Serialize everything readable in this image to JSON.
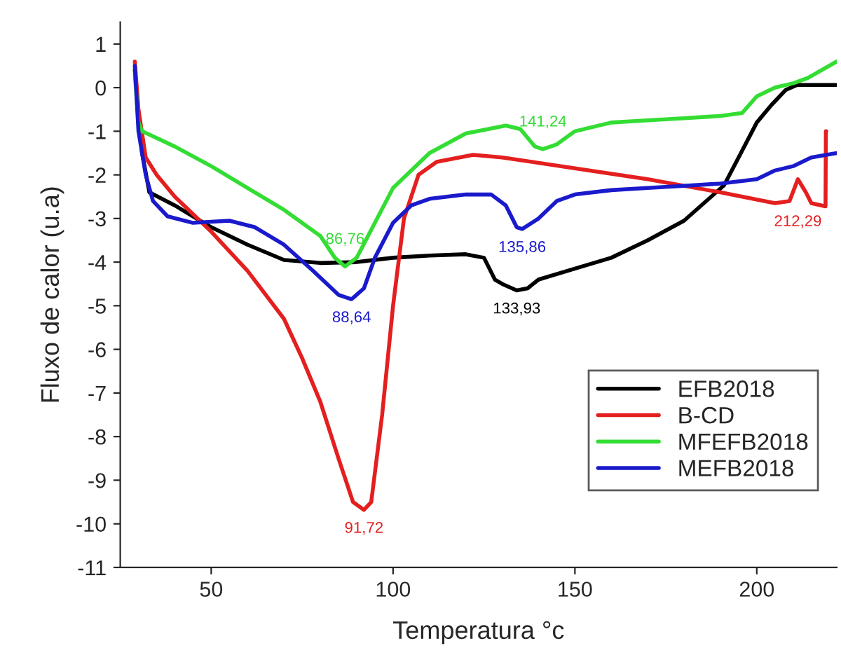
{
  "chart_data": {
    "type": "line",
    "xlabel": "Temperatura °c",
    "ylabel": "Fluxo de calor (u.a)",
    "xlim": [
      25,
      222
    ],
    "xticks": [
      50,
      100,
      150,
      200
    ],
    "ylim": [
      -11,
      1.5
    ],
    "yticks": [
      -11,
      -10,
      -9,
      -8,
      -7,
      -6,
      -5,
      -4,
      -3,
      -2,
      -1,
      0,
      1
    ],
    "grid": false,
    "legend": "bottom right",
    "series": [
      {
        "name": "EFB2018",
        "color": "#000000",
        "x": [
          29,
          31,
          33,
          40,
          50,
          60,
          70,
          80,
          90,
          100,
          110,
          120,
          125,
          128,
          130,
          134,
          137,
          140,
          150,
          160,
          170,
          180,
          191,
          195,
          200,
          204,
          208,
          211,
          215,
          222
        ],
        "values": [
          0.4,
          -1.5,
          -2.4,
          -2.7,
          -3.2,
          -3.6,
          -3.95,
          -4.02,
          -4.0,
          -3.9,
          -3.85,
          -3.82,
          -3.9,
          -4.4,
          -4.5,
          -4.65,
          -4.6,
          -4.4,
          -4.15,
          -3.9,
          -3.5,
          -3.05,
          -2.24,
          -1.6,
          -0.8,
          -0.4,
          -0.05,
          0.06,
          0.06,
          0.06
        ]
      },
      {
        "name": "B-CD",
        "color": "#e41f1f",
        "x": [
          29,
          30,
          32,
          35,
          40,
          50,
          60,
          70,
          75,
          80,
          85,
          89,
          92,
          94,
          97,
          100,
          103,
          107,
          112,
          122,
          130,
          150,
          170,
          190,
          205,
          209,
          211.3,
          213.5,
          215,
          218.9,
          219,
          219.1
        ],
        "values": [
          0.6,
          -0.5,
          -1.6,
          -2.0,
          -2.5,
          -3.3,
          -4.2,
          -5.3,
          -6.2,
          -7.2,
          -8.5,
          -9.5,
          -9.68,
          -9.5,
          -7.5,
          -5.0,
          -3.0,
          -2.0,
          -1.7,
          -1.54,
          -1.6,
          -1.85,
          -2.1,
          -2.4,
          -2.65,
          -2.6,
          -2.1,
          -2.4,
          -2.65,
          -2.72,
          -1.0,
          -1.0
        ]
      },
      {
        "name": "MFEFB2018",
        "color": "#33dd33",
        "x": [
          29,
          30,
          31,
          40,
          50,
          60,
          70,
          80,
          84,
          86.8,
          90,
          95,
          100,
          110,
          120,
          131,
          135,
          139,
          141.2,
          145,
          150,
          160,
          170,
          180,
          190,
          196,
          200,
          205,
          210,
          214,
          222
        ],
        "values": [
          0.3,
          -0.8,
          -1.0,
          -1.35,
          -1.8,
          -2.3,
          -2.8,
          -3.4,
          -3.9,
          -4.1,
          -3.9,
          -3.1,
          -2.3,
          -1.5,
          -1.05,
          -0.87,
          -0.95,
          -1.35,
          -1.41,
          -1.3,
          -1.0,
          -0.8,
          -0.75,
          -0.7,
          -0.65,
          -0.58,
          -0.2,
          0.0,
          0.1,
          0.22,
          0.6
        ]
      },
      {
        "name": "MEFB2018",
        "color": "#1a1acc",
        "x": [
          29,
          30,
          32,
          34,
          38,
          45,
          55,
          62,
          70,
          78,
          85,
          88.6,
          92,
          95,
          100,
          105,
          110,
          120,
          127,
          131,
          134,
          135.5,
          140,
          145,
          150,
          160,
          170,
          180,
          190,
          200,
          205,
          210,
          215,
          222
        ],
        "values": [
          0.5,
          -1.0,
          -2.0,
          -2.6,
          -2.95,
          -3.1,
          -3.05,
          -3.2,
          -3.6,
          -4.2,
          -4.75,
          -4.85,
          -4.6,
          -3.9,
          -3.1,
          -2.7,
          -2.55,
          -2.45,
          -2.45,
          -2.7,
          -3.2,
          -3.24,
          -3.0,
          -2.6,
          -2.45,
          -2.35,
          -2.3,
          -2.25,
          -2.2,
          -2.1,
          -1.9,
          -1.8,
          -1.6,
          -1.5
        ]
      }
    ],
    "annotations": [
      {
        "text": "86,76",
        "x": 86.8,
        "y": -4.1
      },
      {
        "text": "88,64",
        "x": 88.6,
        "y": -4.85
      },
      {
        "text": "91,72",
        "x": 92,
        "y": -9.68
      },
      {
        "text": "141,24",
        "x": 141.2,
        "y": -1.41
      },
      {
        "text": "135,86",
        "x": 135.5,
        "y": -3.24
      },
      {
        "text": "133,93",
        "x": 134,
        "y": -4.65
      },
      {
        "text": "212,29",
        "x": 211.3,
        "y": -2.1
      }
    ]
  }
}
